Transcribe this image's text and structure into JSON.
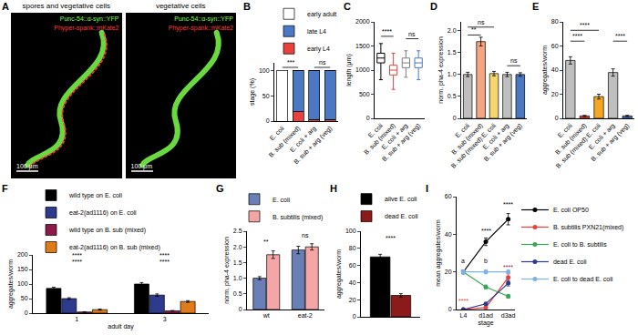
{
  "chart_data": [
    {
      "label": "A",
      "type": "image",
      "panels": [
        {
          "title": "spores and vegetative cells",
          "channels": [
            {
              "text": "Punc-54::α-syn::YFP",
              "color": "#7cff4a"
            },
            {
              "text": "Phyper-spank::mKate2",
              "color": "#ff3b3b"
            }
          ],
          "scale_bar": "100 μm"
        },
        {
          "title": "vegetative cells",
          "channels": [
            {
              "text": "Punc-54::α-syn::YFP",
              "color": "#7cff4a"
            },
            {
              "text": "Phyper-spank::mKate2",
              "color": "#ff3b3b"
            }
          ],
          "scale_bar": "100 μm"
        }
      ]
    },
    {
      "label": "B",
      "type": "bar",
      "stacked": true,
      "legend": "top",
      "categories": [
        "E. coli",
        "B. sub (mixed)",
        "E. coli + arg",
        "B. sub + arg (veg)"
      ],
      "series": [
        {
          "name": "early L4",
          "color": "#e8413c",
          "values": [
            0,
            18,
            3,
            3
          ]
        },
        {
          "name": "late L4",
          "color": "#4a78c2",
          "values": [
            0,
            82,
            97,
            97
          ]
        },
        {
          "name": "early adult",
          "color": "#ffffff",
          "values": [
            100,
            0,
            0,
            0
          ]
        }
      ],
      "y_label": "stage (%)",
      "ylim": [
        0,
        115
      ],
      "yticks": [
        0,
        50,
        100
      ],
      "annotations": [
        {
          "text": "***",
          "from": 0,
          "to": 1,
          "y": 106
        },
        {
          "text": "ns",
          "from": 2,
          "to": 3,
          "y": 106
        }
      ]
    },
    {
      "label": "C",
      "type": "box",
      "categories": [
        "E. coli",
        "B. sub (mixed)",
        "E. coli + arg",
        "B. sub + arg (veg)"
      ],
      "q1": [
        1150,
        900,
        1050,
        1050
      ],
      "median": [
        1250,
        1000,
        1150,
        1150
      ],
      "q3": [
        1350,
        1100,
        1250,
        1250
      ],
      "whisker_low": [
        800,
        600,
        850,
        800
      ],
      "whisker_high": [
        1550,
        1350,
        1400,
        1400
      ],
      "colors": [
        "#000000",
        "#e8413c",
        "#7f7f7f",
        "#4a78c2"
      ],
      "y_label": "length (μm)",
      "ylim": [
        0,
        2000
      ],
      "yticks": [
        0,
        500,
        1000,
        1500,
        2000
      ],
      "annotations": [
        {
          "text": "****",
          "from": 0,
          "to": 1,
          "y": 1700
        },
        {
          "text": "ns",
          "from": 2,
          "to": 3,
          "y": 1650
        }
      ]
    },
    {
      "label": "D",
      "type": "bar",
      "categories": [
        "E. coli",
        "B. sub (mixed)",
        "B. sub (mixed):E. coli",
        "E. coli + arg",
        "B. sub + arg (veg)"
      ],
      "series": [
        {
          "colors": [
            "#bfbfbf",
            "#f4a582",
            "#f5d76e",
            "#bfbfbf",
            "#4a78c2"
          ],
          "values": [
            1.0,
            1.75,
            1.02,
            1.0,
            1.0
          ],
          "errors": [
            0.05,
            0.1,
            0.05,
            0.05,
            0.04
          ]
        }
      ],
      "y_label": "norm. pha-4 expression",
      "ylim": [
        0,
        2.2
      ],
      "yticks": [
        0,
        0.5,
        {
          "value": 1,
          "label": "1.0"
        },
        1.5,
        {
          "value": 2,
          "label": "2.0"
        }
      ],
      "annotations": [
        {
          "text": "**",
          "from": 0,
          "to": 1,
          "y": 1.9
        },
        {
          "text": "ns",
          "from": 0,
          "to": 2,
          "y": 2.08
        },
        {
          "text": "ns",
          "from": 3,
          "to": 4,
          "y": 1.2
        }
      ]
    },
    {
      "label": "E",
      "type": "bar",
      "categories": [
        "E. coli",
        "B. sub (mixed)",
        "B. sub (mixed):E. coli",
        "E. coli + arg",
        "B. sub + arg (veg)"
      ],
      "series": [
        {
          "colors": [
            "#bfbfbf",
            "#e8413c",
            "#f5a623",
            "#bfbfbf",
            "#4a78c2"
          ],
          "values": [
            48,
            2,
            18,
            38,
            2
          ],
          "errors": [
            3,
            0.5,
            2,
            3,
            0.5
          ]
        }
      ],
      "y_label": "aggregates/worm",
      "ylim": [
        0,
        80
      ],
      "yticks": [
        0,
        20,
        40,
        60,
        80
      ],
      "annotations": [
        {
          "text": "****",
          "from": 0,
          "to": 1,
          "y": 64
        },
        {
          "text": "****",
          "from": 0,
          "to": 2,
          "y": 73
        },
        {
          "text": "****",
          "from": 3,
          "to": 4,
          "y": 64
        }
      ]
    },
    {
      "label": "F",
      "type": "bar",
      "legend": "top",
      "categories": [
        "1",
        "3"
      ],
      "x_label": "adult day",
      "series": [
        {
          "name": "wild type on E. coli",
          "color": "#000000",
          "values": [
            85,
            100
          ],
          "errors": [
            4,
            5
          ]
        },
        {
          "name": "eat-2(ad1116) on E. coli",
          "color": "#2e3a8c",
          "values": [
            50,
            62
          ],
          "errors": [
            3,
            4
          ]
        },
        {
          "name": "wild type on B. sub (mixed)",
          "color": "#8b1a4a",
          "values": [
            4,
            8
          ],
          "errors": [
            1,
            1
          ]
        },
        {
          "name": "eat-2(ad1116) on B. sub (mixed)",
          "color": "#e07b1a",
          "values": [
            12,
            40
          ],
          "errors": [
            2,
            3
          ]
        }
      ],
      "y_label": "aggregates/worm",
      "ylim": [
        0,
        200
      ],
      "yticks": [
        0,
        50,
        100,
        150,
        200
      ],
      "annotations": [
        {
          "text": "****",
          "from": 0,
          "to": 0,
          "y": 160
        },
        {
          "text": "****",
          "from": 0,
          "to": 0,
          "y": 180
        },
        {
          "text": "****",
          "from": 1,
          "to": 1,
          "y": 160
        },
        {
          "text": "****",
          "from": 1,
          "to": 1,
          "y": 180
        }
      ]
    },
    {
      "label": "G",
      "type": "bar",
      "legend": "top",
      "categories": [
        "wt",
        "eat-2"
      ],
      "series": [
        {
          "name": "E. coli",
          "color": "#6a7fb5",
          "values": [
            1.0,
            1.9
          ],
          "errors": [
            0.05,
            0.12
          ]
        },
        {
          "name": "B. subtilis (mixed)",
          "color": "#f4a5a5",
          "values": [
            1.75,
            2.0
          ],
          "errors": [
            0.12,
            0.1
          ]
        }
      ],
      "y_label": "norm. pha-4 expression",
      "ylim": [
        0,
        2.5
      ],
      "yticks": [
        0,
        0.5,
        {
          "value": 1,
          "label": "1.0"
        },
        1.5,
        {
          "value": 2,
          "label": "2.0"
        },
        2.5
      ],
      "annotations": [
        {
          "text": "**",
          "from": 0,
          "to": 0,
          "y": 2.0
        },
        {
          "text": "ns",
          "from": 1,
          "to": 1,
          "y": 2.2
        }
      ]
    },
    {
      "label": "H",
      "type": "bar",
      "legend": "top",
      "tick_labels": "y",
      "categories": [
        null
      ],
      "series": [
        {
          "name": "alive E. coli",
          "color": "#000000",
          "values": [
            70
          ],
          "errors": [
            3
          ]
        },
        {
          "name": "dead E. coli",
          "color": "#8b1a1a",
          "values": [
            25
          ],
          "errors": [
            2
          ]
        }
      ],
      "y_label": "aggregates/worm",
      "ylim": [
        0,
        100
      ],
      "yticks": [
        0,
        20,
        40,
        60,
        80,
        100
      ],
      "annotations": [
        {
          "text": "****",
          "from": 0,
          "to": 0,
          "y": 86
        }
      ]
    },
    {
      "label": "I",
      "type": "line",
      "legend": "right",
      "categories": [
        "L4",
        "d1ad",
        "d3ad"
      ],
      "x_label": "stage",
      "series": [
        {
          "name": "E. coli OP50",
          "color": "#000000",
          "values": [
            20,
            36,
            48
          ],
          "errors": [
            1,
            2,
            3
          ]
        },
        {
          "name": "B. subtilis PXN21(mixed)",
          "color": "#e8413c",
          "values": [
            0,
            1,
            17
          ],
          "errors": [
            0,
            0.3,
            2
          ]
        },
        {
          "name": "E. coli to B. subtilis",
          "color": "#3aa655",
          "values": [
            20,
            12,
            7
          ],
          "errors": [
            1,
            1,
            1
          ]
        },
        {
          "name": "dead E. coli",
          "color": "#2e3a8c",
          "values": [
            0,
            3,
            14
          ],
          "errors": [
            0,
            0.5,
            1.5
          ]
        },
        {
          "name": "E. coli to dead E. coli",
          "color": "#7fb2e5",
          "values": [
            20,
            20,
            20
          ],
          "errors": [
            1,
            1,
            1
          ]
        }
      ],
      "y_label": "mean aggregates/worm",
      "ylim": [
        0,
        60
      ],
      "yticks": [
        0,
        20,
        40,
        60
      ],
      "annotations": [
        {
          "text": "a",
          "from": 0,
          "to": 0,
          "y": 23
        },
        {
          "text": "b",
          "from": 1,
          "to": 1,
          "y": 23
        },
        {
          "text": "****",
          "from": 1,
          "to": 1,
          "y": 39
        },
        {
          "text": "****",
          "from": 2,
          "to": 2,
          "y": 53
        },
        {
          "text": "****",
          "from": 0,
          "to": 0,
          "y": 2,
          "color": "#e8413c"
        },
        {
          "text": "****",
          "from": 2,
          "to": 2,
          "y": 20,
          "color": "#8b1a4a"
        }
      ]
    }
  ]
}
